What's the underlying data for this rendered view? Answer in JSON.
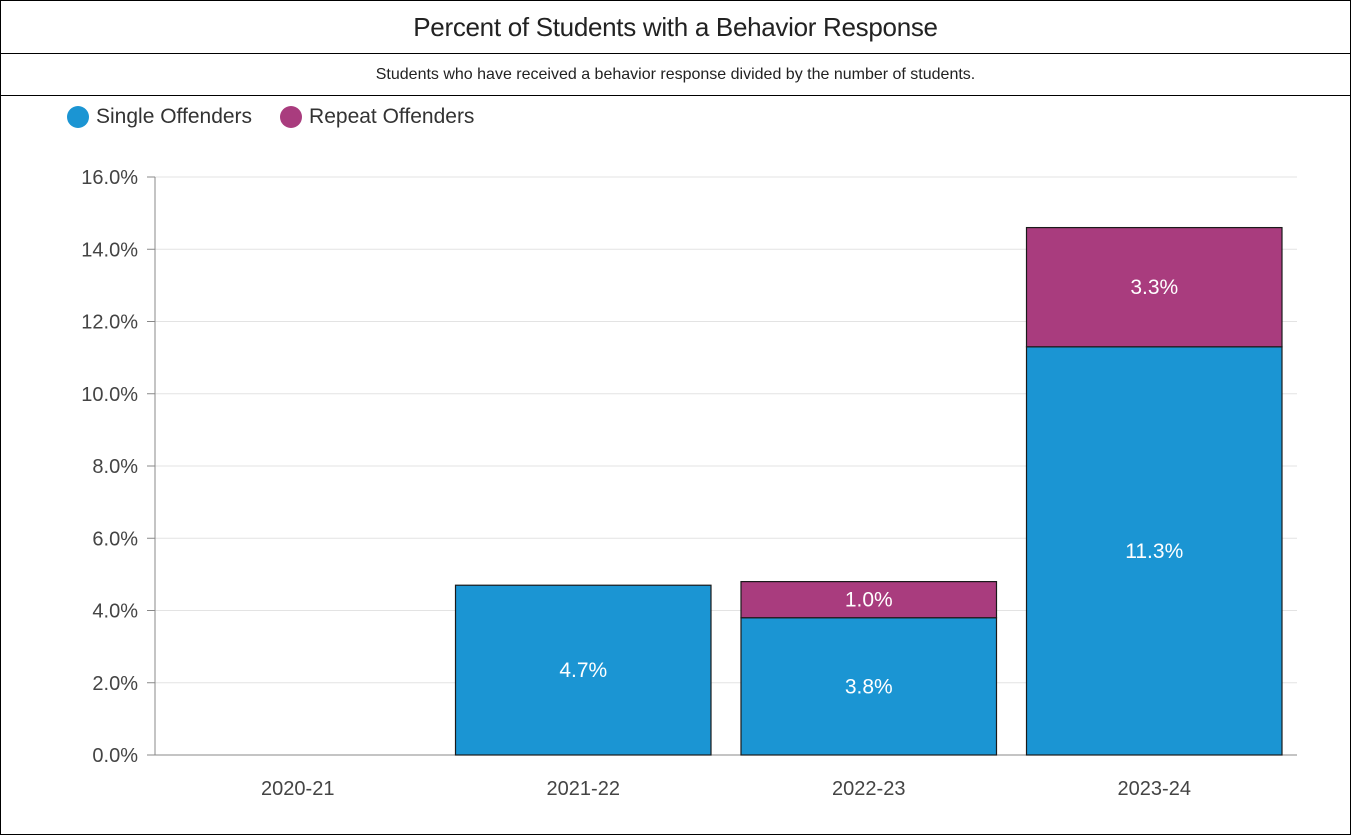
{
  "header": {
    "title": "Percent of Students with a Behavior Response",
    "subtitle": "Students who have received a behavior response divided by the number of students."
  },
  "colors": {
    "single": "#1b95d3",
    "repeat": "#a93c7e",
    "grid": "#e3e3e3",
    "axis": "#888888"
  },
  "chart_data": {
    "type": "bar",
    "stacked": true,
    "title": "Percent of Students with a Behavior Response",
    "subtitle": "Students who have received a behavior response divided by the number of students.",
    "categories": [
      "2020-21",
      "2021-22",
      "2022-23",
      "2023-24"
    ],
    "series": [
      {
        "name": "Single Offenders",
        "values": [
          0,
          4.7,
          3.8,
          11.3
        ],
        "labels": [
          "",
          "4.7%",
          "3.8%",
          "11.3%"
        ]
      },
      {
        "name": "Repeat Offenders",
        "values": [
          0,
          0,
          1.0,
          3.3
        ],
        "labels": [
          "",
          "",
          "1.0%",
          "3.3%"
        ]
      }
    ],
    "ylim": [
      0,
      16
    ],
    "yticks": [
      "0.0%",
      "2.0%",
      "4.0%",
      "6.0%",
      "8.0%",
      "10.0%",
      "12.0%",
      "14.0%",
      "16.0%"
    ],
    "grid": true,
    "legend": "top-left",
    "xlabel": "",
    "ylabel": ""
  }
}
